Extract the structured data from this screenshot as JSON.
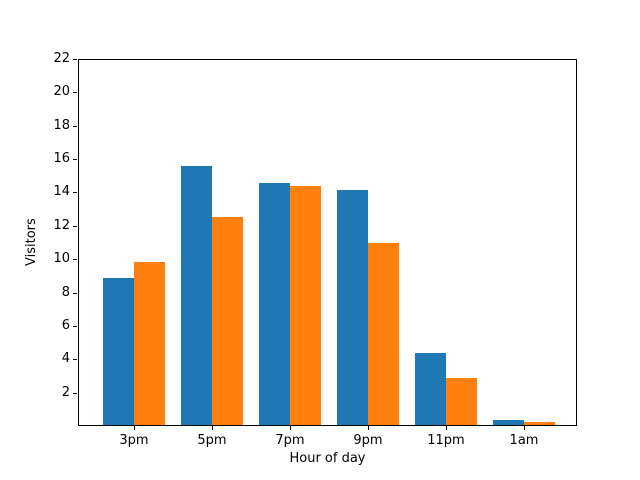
{
  "chart_data": {
    "type": "bar",
    "title": "",
    "xlabel": "Hour of day",
    "ylabel": "Visitors",
    "categories": [
      "3pm",
      "5pm",
      "7pm",
      "9pm",
      "11pm",
      "1am"
    ],
    "series": [
      {
        "name": "blue",
        "color": "#1f77b4",
        "values": [
          8.8,
          15.5,
          14.5,
          14.1,
          4.3,
          0.3
        ]
      },
      {
        "name": "orange",
        "color": "#ff7f0e",
        "values": [
          9.8,
          12.5,
          14.3,
          10.9,
          2.8,
          0.2
        ]
      }
    ],
    "ylim": [
      0,
      22
    ],
    "yticks": [
      2,
      4,
      6,
      8,
      10,
      12,
      14,
      16,
      18,
      20,
      22
    ],
    "grid": false,
    "legend": "none",
    "background": "#ffffff",
    "frame_color": "#000000"
  }
}
